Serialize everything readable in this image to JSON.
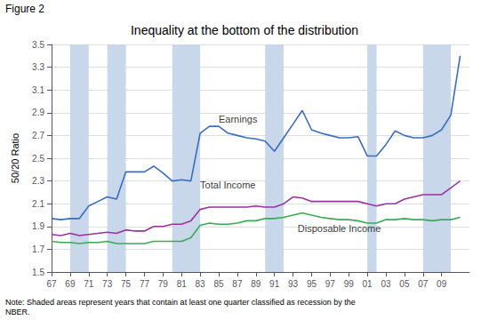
{
  "chart_data": {
    "type": "line",
    "title": "Inequality at the bottom of the distribution",
    "figure_label": "Figure 2",
    "ylabel": "50/20 Ratio",
    "note": "Note: Shaded areas represent years that contain at least one quarter classified as recession by the\nNBER.",
    "background_color": "#ffffff",
    "x": [
      67,
      68,
      69,
      70,
      71,
      72,
      73,
      74,
      75,
      76,
      77,
      78,
      79,
      80,
      81,
      82,
      83,
      84,
      85,
      86,
      87,
      88,
      89,
      90,
      91,
      92,
      93,
      94,
      95,
      96,
      97,
      98,
      99,
      100,
      101,
      102,
      103,
      104,
      105,
      106,
      107,
      108,
      109,
      110,
      111
    ],
    "series": [
      {
        "name": "Earnings",
        "color": "#3a6cbf",
        "values": [
          1.97,
          1.96,
          1.97,
          1.97,
          2.08,
          2.12,
          2.16,
          2.14,
          2.38,
          2.38,
          2.38,
          2.43,
          2.37,
          2.3,
          2.31,
          2.3,
          2.72,
          2.78,
          2.78,
          2.72,
          2.7,
          2.68,
          2.67,
          2.65,
          2.56,
          2.68,
          2.8,
          2.92,
          2.75,
          2.72,
          2.7,
          2.68,
          2.68,
          2.69,
          2.52,
          2.52,
          2.62,
          2.74,
          2.7,
          2.68,
          2.68,
          2.7,
          2.75,
          2.88,
          3.4
        ]
      },
      {
        "name": "Total Income",
        "color": "#9b30a0",
        "values": [
          1.83,
          1.82,
          1.84,
          1.82,
          1.83,
          1.84,
          1.85,
          1.84,
          1.87,
          1.86,
          1.86,
          1.9,
          1.9,
          1.92,
          1.92,
          1.95,
          2.05,
          2.07,
          2.07,
          2.07,
          2.07,
          2.07,
          2.08,
          2.07,
          2.07,
          2.1,
          2.16,
          2.15,
          2.12,
          2.12,
          2.12,
          2.12,
          2.12,
          2.12,
          2.1,
          2.08,
          2.1,
          2.1,
          2.14,
          2.16,
          2.18,
          2.18,
          2.18,
          2.24,
          2.3
        ]
      },
      {
        "name": "Disposable Income",
        "color": "#3aaa55",
        "values": [
          1.77,
          1.76,
          1.76,
          1.75,
          1.76,
          1.76,
          1.77,
          1.75,
          1.75,
          1.75,
          1.75,
          1.77,
          1.77,
          1.77,
          1.77,
          1.8,
          1.91,
          1.93,
          1.92,
          1.92,
          1.93,
          1.95,
          1.95,
          1.97,
          1.97,
          1.98,
          2.0,
          2.02,
          2.0,
          1.98,
          1.97,
          1.96,
          1.96,
          1.95,
          1.93,
          1.93,
          1.96,
          1.96,
          1.97,
          1.96,
          1.96,
          1.95,
          1.96,
          1.96,
          1.98
        ]
      }
    ],
    "annotations": [
      {
        "text": "Earnings",
        "x": 85,
        "y": 2.8
      },
      {
        "text": "Total Income",
        "x": 83,
        "y": 2.22
      },
      {
        "text": "Disposable Income",
        "x": 93.5,
        "y": 1.84
      }
    ],
    "recession_bands": {
      "color": "#c8d8ea",
      "ranges": [
        [
          69,
          71
        ],
        [
          73,
          75
        ],
        [
          80,
          83
        ],
        [
          90,
          92
        ],
        [
          101,
          102
        ],
        [
          107,
          110
        ]
      ]
    },
    "xlim": [
      67,
      112
    ],
    "xticks": [
      67,
      69,
      71,
      73,
      75,
      77,
      79,
      81,
      83,
      85,
      87,
      89,
      91,
      93,
      95,
      97,
      99,
      {
        "value": 101,
        "label": "01"
      },
      {
        "value": 103,
        "label": "03"
      },
      {
        "value": 105,
        "label": "05"
      },
      {
        "value": 107,
        "label": "07"
      },
      {
        "value": 109,
        "label": "09"
      }
    ],
    "ylim": [
      1.5,
      3.5
    ],
    "yticks": [
      1.5,
      1.7,
      1.9,
      2.1,
      2.3,
      2.5,
      2.7,
      2.9,
      3.1,
      3.3,
      3.5
    ],
    "grid": "y"
  }
}
